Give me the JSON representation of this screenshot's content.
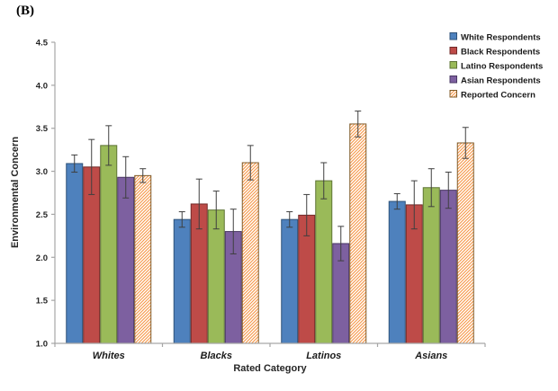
{
  "panel_label": "(B)",
  "chart_data": {
    "type": "bar",
    "title": "",
    "xlabel": "Rated Category",
    "ylabel": "Environmental Concern",
    "categories": [
      "Whites",
      "Blacks",
      "Latinos",
      "Asians"
    ],
    "ylim": [
      1.0,
      4.5
    ],
    "ytick_step": 0.5,
    "grid": false,
    "legend_position": "top-right",
    "axis_color": "#a6a6a6",
    "error_bar_color": "#3f3f3f",
    "series": [
      {
        "name": "White Respondents",
        "color": "#4E81BD",
        "border": "#2F5279",
        "pattern": "solid",
        "values": [
          3.09,
          2.44,
          2.44,
          2.65
        ],
        "errors": [
          0.1,
          0.09,
          0.09,
          0.09
        ]
      },
      {
        "name": "Black Respondents",
        "color": "#BE4B48",
        "border": "#722B29",
        "pattern": "solid",
        "values": [
          3.05,
          2.62,
          2.49,
          2.61
        ],
        "errors": [
          0.32,
          0.29,
          0.24,
          0.28
        ]
      },
      {
        "name": "Latino Respondents",
        "color": "#9ABA59",
        "border": "#5E7434",
        "pattern": "solid",
        "values": [
          3.3,
          2.55,
          2.89,
          2.81
        ],
        "errors": [
          0.23,
          0.22,
          0.21,
          0.22
        ]
      },
      {
        "name": "Asian Respondents",
        "color": "#7D60A0",
        "border": "#4A3864",
        "pattern": "solid",
        "values": [
          2.93,
          2.3,
          2.16,
          2.78
        ],
        "errors": [
          0.24,
          0.26,
          0.2,
          0.21
        ]
      },
      {
        "name": "Reported Concern",
        "color": "#F79646",
        "border": "#7F5B2A",
        "pattern": "diagonal-hatch",
        "values": [
          2.95,
          3.1,
          3.55,
          3.33
        ],
        "errors": [
          0.08,
          0.2,
          0.15,
          0.18
        ]
      }
    ]
  }
}
